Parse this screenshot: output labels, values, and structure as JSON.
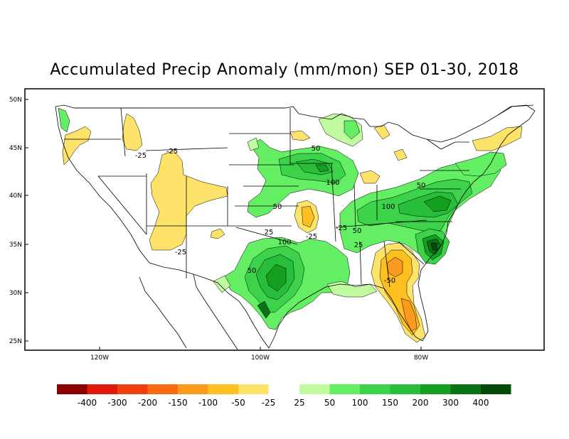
{
  "title": "Accumulated Precip Anomaly (mm/mon) SEP 01-30, 2018",
  "units": "mm/mon",
  "lat_ticks": [
    "50N",
    "45N",
    "40N",
    "35N",
    "30N",
    "25N"
  ],
  "lon_ticks": [
    "120W",
    "100W",
    "80W"
  ],
  "contour_labels": [
    "-25",
    "-25",
    "-25",
    "-25",
    "-25",
    "-50",
    "50",
    "50",
    "50",
    "50",
    "50",
    "100",
    "100",
    "100",
    "25",
    "25"
  ],
  "legend": {
    "negative_labels": [
      "-400",
      "-300",
      "-200",
      "-150",
      "-100",
      "-50",
      "-25"
    ],
    "positive_labels": [
      "25",
      "50",
      "100",
      "150",
      "200",
      "300",
      "400"
    ],
    "negative_colors": [
      "#8c0000",
      "#e01a08",
      "#f04010",
      "#fa6a10",
      "#fc9a20",
      "#fdc020",
      "#fde36a"
    ],
    "positive_colors": [
      "#c0fba0",
      "#64ee64",
      "#3cd24a",
      "#28be3c",
      "#14a01e",
      "#0a7214",
      "#064a0a"
    ]
  },
  "fill_colors": {
    "dry_light": "#fde36a",
    "dry_med": "#fdc020",
    "dry_strong": "#fc9a20",
    "wet_light": "#c0fba0",
    "wet_50": "#64ee64",
    "wet_100": "#3cd24a",
    "wet_150": "#28be3c",
    "wet_200": "#14a01e",
    "wet_300": "#0a7214",
    "wet_400": "#064a0a"
  }
}
